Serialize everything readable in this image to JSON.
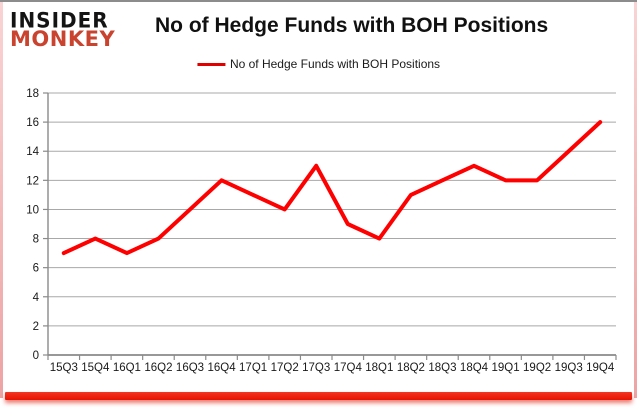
{
  "frame": {
    "top_border_color": "#8c8c8c",
    "side_glow_color_top": "#f9d4d4",
    "side_glow_color_bottom": "#eda3a3",
    "bottom_bar_color": "#e61300"
  },
  "logo": {
    "line1": "INSIDER",
    "line2": "MONKEY",
    "line1_color": "#141414",
    "line2_color": "#c9432f"
  },
  "header": {
    "title": "No of Hedge Funds with BOH Positions"
  },
  "legend": {
    "label": "No of Hedge Funds with BOH Positions",
    "marker_color": "#e00000"
  },
  "chart_data": {
    "type": "line",
    "title": "No of Hedge Funds with BOH Positions",
    "categories": [
      "15Q3",
      "15Q4",
      "16Q1",
      "16Q2",
      "16Q3",
      "16Q4",
      "17Q1",
      "17Q2",
      "17Q3",
      "17Q4",
      "18Q1",
      "18Q2",
      "18Q3",
      "18Q4",
      "19Q1",
      "19Q2",
      "19Q3",
      "19Q4"
    ],
    "series": [
      {
        "name": "No of Hedge Funds with BOH Positions",
        "color": "#fe0000",
        "values": [
          7,
          8,
          7,
          8,
          10,
          12,
          11,
          10,
          13,
          9,
          8,
          11,
          12,
          13,
          12,
          12,
          14,
          16
        ]
      }
    ],
    "xlabel": "",
    "ylabel": "",
    "ylim": [
      0,
      18
    ],
    "ytick_step": 2,
    "grid": true,
    "gridline_color": "#a8a8a8",
    "axis_color": "#8a8a8a",
    "label_color": "#1a1a1a",
    "legend_position": "top-center"
  }
}
